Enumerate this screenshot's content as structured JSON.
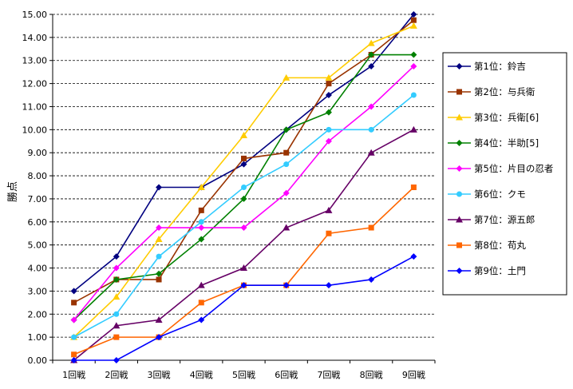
{
  "chart_data": {
    "type": "line",
    "ylabel": "勝点",
    "ylim": [
      0,
      15
    ],
    "ystep": 1,
    "ytick_format": "0.00",
    "grid": "horizontal dashed",
    "legend_position": "right",
    "categories": [
      "1回戦",
      "2回戦",
      "3回戦",
      "4回戦",
      "5回戦",
      "6回戦",
      "7回戦",
      "8回戦",
      "9回戦"
    ],
    "series": [
      {
        "name": "第1位：鈴吉",
        "color": "#000080",
        "marker": "diamond",
        "values": [
          3,
          4.5,
          7.5,
          7.5,
          8.5,
          10,
          11.5,
          12.75,
          15
        ]
      },
      {
        "name": "第2位：与兵衛",
        "color": "#993300",
        "marker": "square",
        "values": [
          2.5,
          3.5,
          3.5,
          6.5,
          8.75,
          9,
          12,
          13.25,
          14.75
        ]
      },
      {
        "name": "第3位：兵衛[6]",
        "color": "#FFCC00",
        "marker": "triangle",
        "values": [
          1,
          2.75,
          5.25,
          7.5,
          9.75,
          12.25,
          12.25,
          13.75,
          14.5
        ]
      },
      {
        "name": "第4位：半助[5]",
        "color": "#008000",
        "marker": "diamond",
        "values": [
          1.75,
          3.5,
          3.75,
          5.25,
          7,
          10,
          10.75,
          13.25,
          13.25
        ]
      },
      {
        "name": "第5位：片目の忍者",
        "color": "#FF00FF",
        "marker": "diamond",
        "values": [
          1.75,
          4,
          5.75,
          5.75,
          5.75,
          7.25,
          9.5,
          11,
          12.75
        ]
      },
      {
        "name": "第6位：クモ",
        "color": "#33CCFF",
        "marker": "circle",
        "values": [
          1,
          2,
          4.5,
          6,
          7.5,
          8.5,
          10,
          10,
          11.5
        ]
      },
      {
        "name": "第7位：源五郎",
        "color": "#660066",
        "marker": "triangle",
        "values": [
          0,
          1.5,
          1.75,
          3.25,
          4,
          5.75,
          6.5,
          9,
          10
        ]
      },
      {
        "name": "第8位：苟丸",
        "color": "#FF6600",
        "marker": "square",
        "values": [
          0.25,
          1,
          1,
          2.5,
          3.25,
          3.25,
          5.5,
          5.75,
          7.5
        ]
      },
      {
        "name": "第9位：土門",
        "color": "#0000FF",
        "marker": "diamond",
        "values": [
          0,
          0,
          1,
          1.75,
          3.25,
          3.25,
          3.25,
          3.5,
          4.5
        ]
      }
    ]
  }
}
